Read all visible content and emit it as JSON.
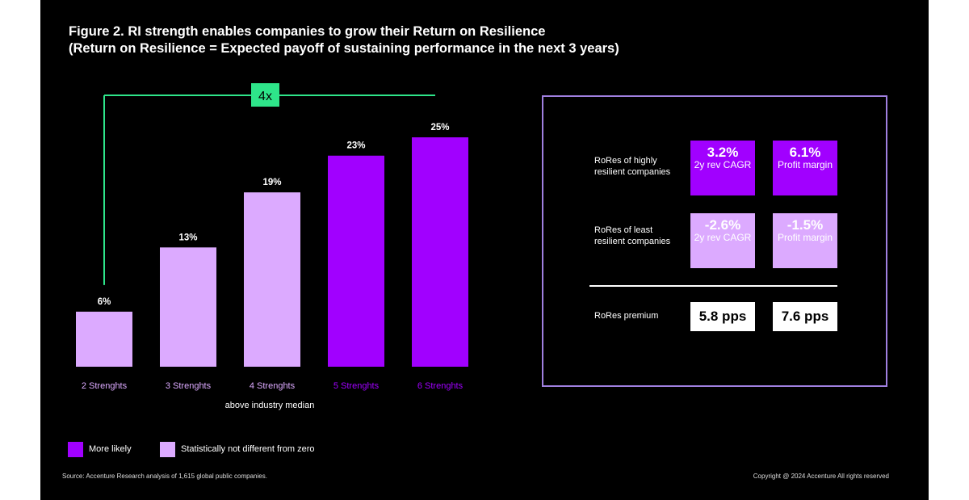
{
  "title_line1": "Figure 2. RI strength enables companies to grow their Return on Resilience",
  "title_line2": "(Return on Resilience = Expected payoff of sustaining performance in the next 3 years)",
  "multiplier_label": "4x",
  "x_subtitle": "above industry median",
  "colors": {
    "dark": "#a100ff",
    "light": "#dcaaff",
    "accent": "#2ee58a",
    "background": "#000000"
  },
  "chart_data": {
    "type": "bar",
    "categories": [
      "2 Strenghts",
      "3 Strenghts",
      "4 Strenghts",
      "5 Strenghts",
      "6 Strenghts"
    ],
    "values": [
      6,
      13,
      19,
      23,
      25
    ],
    "value_labels": [
      "6%",
      "13%",
      "19%",
      "23%",
      "25%"
    ],
    "groups": [
      "light",
      "light",
      "light",
      "dark",
      "dark"
    ],
    "ylim": [
      0,
      25
    ],
    "annotation": {
      "text": "4x",
      "from": "2 Strenghts",
      "to": "6 Strenghts"
    }
  },
  "rores": {
    "high_label": "RoRes of highly resilient companies",
    "low_label": "RoRes of least resilient companies",
    "premium_label": "RoRes premium",
    "high": [
      {
        "value": "3.2%",
        "metric": "2y rev CAGR"
      },
      {
        "value": "6.1%",
        "metric": "Profit margin"
      }
    ],
    "low": [
      {
        "value": "-2.6%",
        "metric": "2y rev CAGR"
      },
      {
        "value": "-1.5%",
        "metric": "Profit margin"
      }
    ],
    "premium": [
      "5.8 pps",
      "7.6 pps"
    ]
  },
  "legend": {
    "dark_label": "More likely",
    "light_label": "Statistically not different from zero"
  },
  "source": "Source: Accenture Research analysis of 1,615 global public companies.",
  "copyright": "Copyright @ 2024 Accenture All rights reserved"
}
